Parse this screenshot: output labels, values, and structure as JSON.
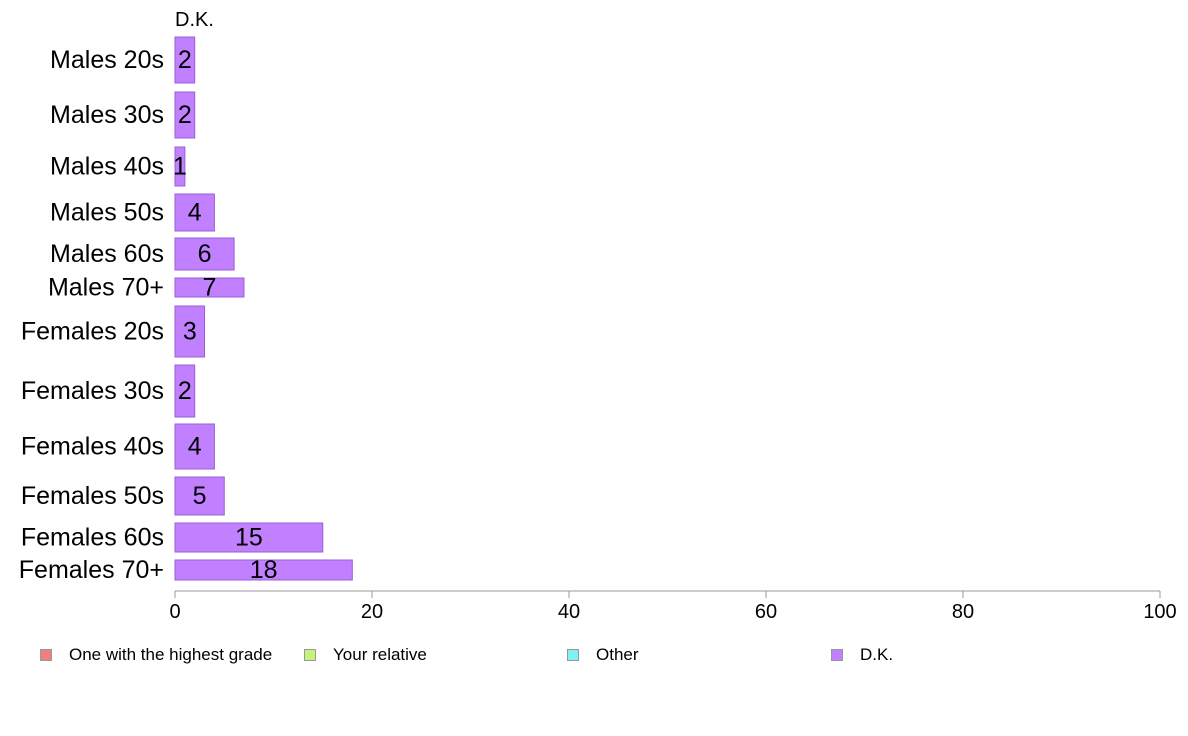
{
  "chart_data": {
    "type": "bar",
    "orientation": "horizontal",
    "stacked": true,
    "categories": [
      "Males 20s",
      "Males 30s",
      "Males 40s",
      "Males 50s",
      "Males 60s",
      "Males 70+",
      "Females 20s",
      "Females 30s",
      "Females 40s",
      "Females 50s",
      "Females 60s",
      "Females 70+"
    ],
    "series": [
      {
        "name": "One with the highest grade",
        "color": "#f08080",
        "values": [
          0,
          0,
          0,
          0,
          0,
          0,
          0,
          0,
          0,
          0,
          0,
          0
        ]
      },
      {
        "name": "Your relative",
        "color": "#c6f080",
        "values": [
          0,
          0,
          0,
          0,
          0,
          0,
          0,
          0,
          0,
          0,
          0,
          0
        ]
      },
      {
        "name": "Other",
        "color": "#80f0f0",
        "values": [
          0,
          0,
          0,
          0,
          0,
          0,
          0,
          0,
          0,
          0,
          0,
          0
        ]
      },
      {
        "name": "D.K.",
        "color": "#c080ff",
        "values": [
          2,
          2,
          1,
          4,
          6,
          7,
          3,
          2,
          4,
          5,
          15,
          18
        ]
      }
    ],
    "data_labels": [
      "2",
      "2",
      "1",
      "4",
      "6",
      "7",
      "3",
      "2",
      "4",
      "5",
      "15",
      "18"
    ],
    "column_header": "D.K.",
    "xlim": [
      0,
      100
    ],
    "xticks": [
      "0",
      "20",
      "40",
      "60",
      "80",
      "100"
    ],
    "grid": false,
    "legend_position": "bottom"
  }
}
